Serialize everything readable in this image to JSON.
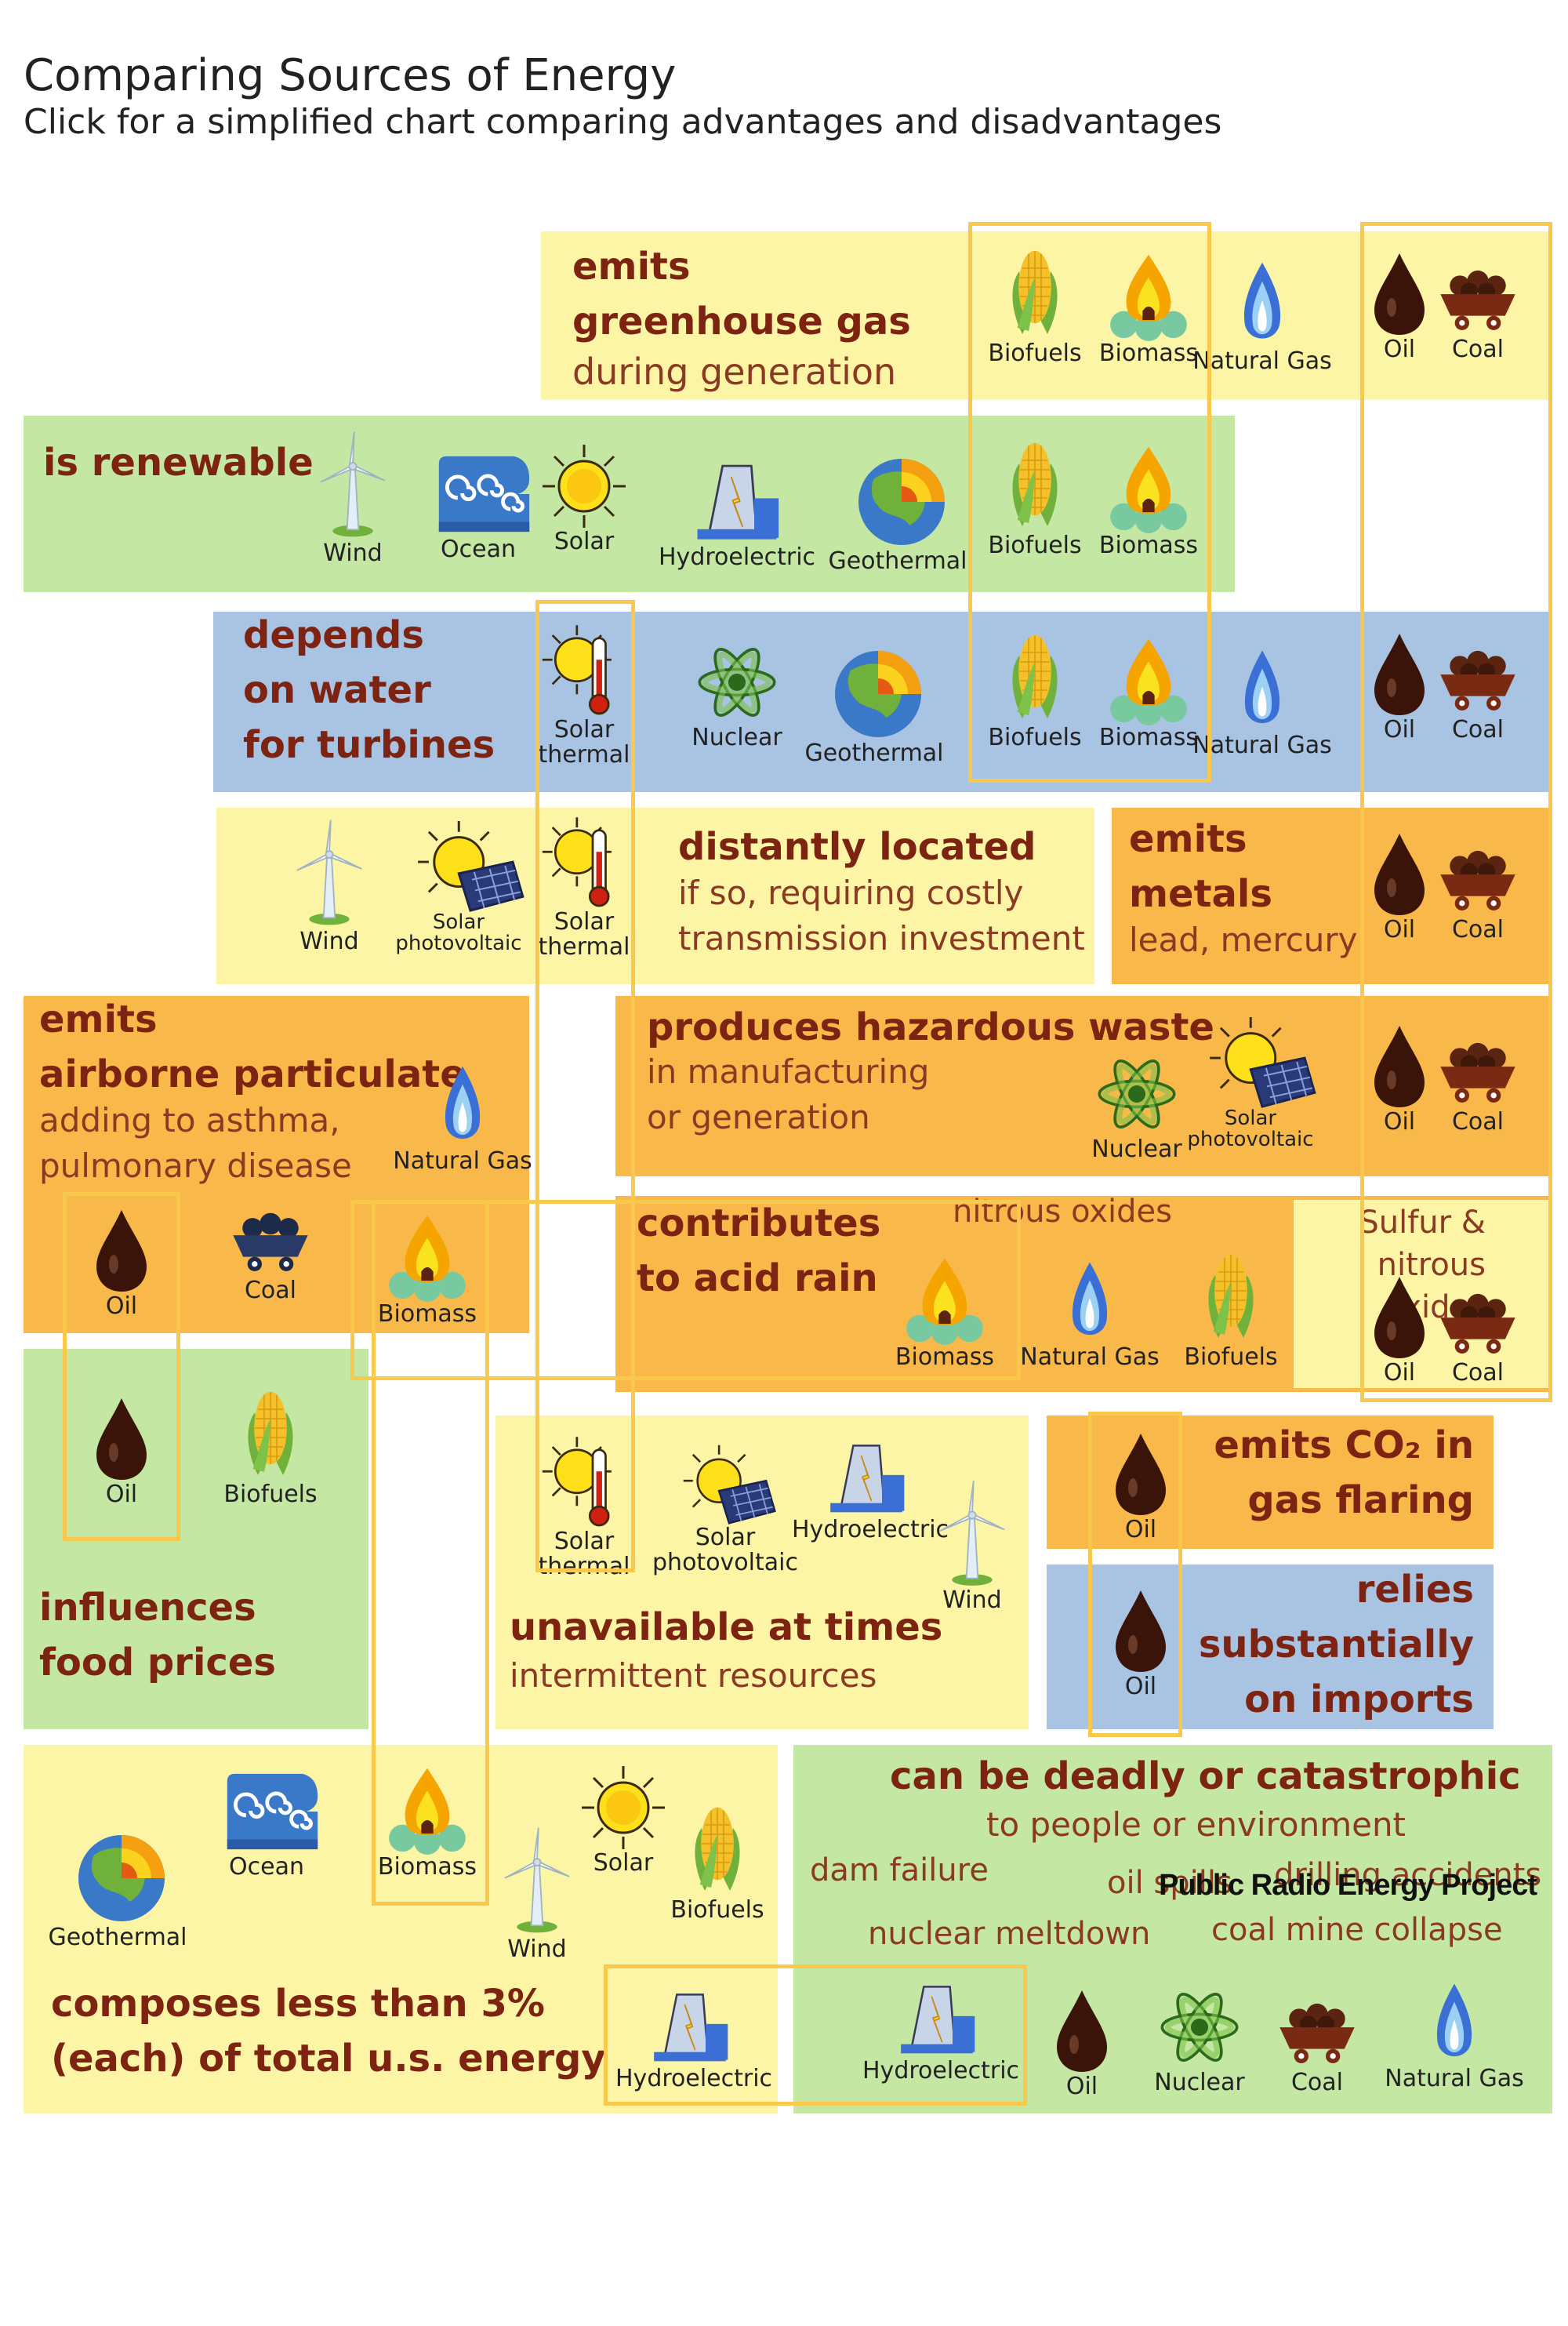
{
  "header": {
    "title": "Comparing Sources of Energy",
    "subtitle": "Click for a simplified chart comparing advantages and disadvantages"
  },
  "colors": {
    "yellow": "#fdf5a6",
    "green": "#c4e8a4",
    "blue": "#a9c3e3",
    "orange": "#f9b94a",
    "heading": "#7c2312",
    "frame": "#f9c94e"
  },
  "panels": {
    "greenhouse": {
      "heading": "emits\ngreenhouse gas",
      "sub": "during generation"
    },
    "renewable": {
      "heading": "is renewable"
    },
    "water": {
      "heading": "depends\non water\nfor turbines"
    },
    "distant": {
      "heading": "distantly located",
      "sub": "if so, requiring costly\ntransmission investment"
    },
    "metals": {
      "heading": "emits\nmetals",
      "sub": "lead, mercury"
    },
    "particulate": {
      "heading": "emits\nairborne particulate",
      "sub": "adding to asthma,\npulmonary disease"
    },
    "waste": {
      "heading": "produces hazardous waste",
      "sub": "in manufacturing\nor generation"
    },
    "acid": {
      "heading": "contributes\nto acid rain",
      "note1": "nitrous oxides",
      "note2": "Sulfur & nitrous\noxides"
    },
    "food": {
      "heading": "influences\nfood prices"
    },
    "unavailable": {
      "heading": "unavailable at times",
      "sub": "intermittent resources"
    },
    "co2": {
      "heading": "emits CO₂ in\ngas flaring"
    },
    "imports": {
      "heading": "relies\nsubstantially\non imports"
    },
    "small": {
      "heading": "composes less than 3%\n(each) of total u.s. energy"
    },
    "deadly": {
      "heading": "can be deadly or catastrophic",
      "sub": "to people or environment",
      "p1": "dam failure",
      "p2": "oil spills",
      "p3": "drilling accidents",
      "p4": "nuclear meltdown",
      "p5": "coal mine collapse"
    }
  },
  "labels": {
    "wind": "Wind",
    "ocean": "Ocean",
    "solar": "Solar",
    "hydro": "Hydroelectric",
    "geo": "Geothermal",
    "biofuels": "Biofuels",
    "biomass": "Biomass",
    "gas": "Natural Gas",
    "oil": "Oil",
    "coal": "Coal",
    "nuclear": "Nuclear",
    "solar_thermal_a": "Solar",
    "solar_thermal_b": "thermal",
    "solar_pv_a": "Solar",
    "solar_pv_b": "photovoltaic"
  },
  "icons": [
    "wind-icon",
    "ocean-icon",
    "sun-icon",
    "dam-icon",
    "globe-icon",
    "corn-icon",
    "fire-icon",
    "flame-icon",
    "oil-drop-icon",
    "coal-cart-icon",
    "atom-icon",
    "thermometer-sun-icon",
    "solar-panel-icon"
  ],
  "credit": "Public Radio Energy Project"
}
